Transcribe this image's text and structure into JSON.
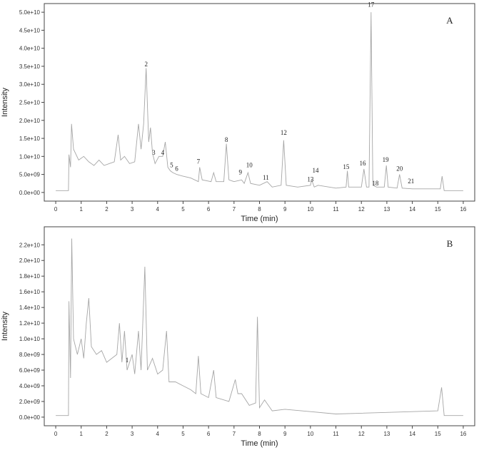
{
  "chart_data": [
    {
      "type": "line",
      "panel_label": "A",
      "x_label": "Time (min)",
      "y_label": "Intensity",
      "color": "#a6a6a6",
      "xlim": [
        -0.45,
        16.45
      ],
      "ylim": [
        -2400000000.0,
        52400000000.0
      ],
      "xticks": [
        0,
        1,
        2,
        3,
        4,
        5,
        6,
        7,
        8,
        9,
        10,
        11,
        12,
        13,
        14,
        15,
        16
      ],
      "yticks": [
        {
          "value": 0,
          "label": "0.0e+00"
        },
        {
          "value": 5000000000.0,
          "label": "5.0e+09"
        },
        {
          "value": 10000000000.0,
          "label": "1.0e+10"
        },
        {
          "value": 15000000000.0,
          "label": "1.5e+10"
        },
        {
          "value": 20000000000.0,
          "label": "2.0e+10"
        },
        {
          "value": 25000000000.0,
          "label": "2.5e+10"
        },
        {
          "value": 30000000000.0,
          "label": "3.0e+10"
        },
        {
          "value": 35000000000.0,
          "label": "3.5e+10"
        },
        {
          "value": 40000000000.0,
          "label": "4.0e+10"
        },
        {
          "value": 45000000000.0,
          "label": "4.5e+10"
        },
        {
          "value": 50000000000.0,
          "label": "5.0e+10"
        }
      ],
      "x": [
        0,
        0.5,
        0.52,
        0.58,
        0.62,
        0.7,
        0.9,
        1.1,
        1.3,
        1.5,
        1.7,
        1.9,
        2.1,
        2.3,
        2.45,
        2.55,
        2.7,
        2.9,
        3.1,
        3.25,
        3.35,
        3.45,
        3.55,
        3.65,
        3.72,
        3.8,
        3.9,
        4.05,
        4.2,
        4.3,
        4.4,
        4.5,
        4.6,
        4.75,
        5.0,
        5.3,
        5.6,
        5.65,
        5.75,
        6.1,
        6.2,
        6.3,
        6.6,
        6.7,
        6.8,
        7.0,
        7.3,
        7.4,
        7.55,
        7.65,
        8.0,
        8.3,
        8.5,
        8.85,
        8.95,
        9.05,
        9.5,
        10.0,
        10.05,
        10.15,
        10.3,
        11.0,
        11.4,
        11.45,
        11.5,
        12.0,
        12.1,
        12.2,
        12.3,
        12.38,
        12.45,
        12.6,
        12.9,
        12.98,
        13.05,
        13.4,
        13.5,
        13.6,
        14.0,
        15.1,
        15.17,
        15.25,
        16.0
      ],
      "values": [
        500000000.0,
        500000000.0,
        10500000000.0,
        7000000000.0,
        19000000000.0,
        12000000000.0,
        9000000000.0,
        10000000000.0,
        8500000000.0,
        7500000000.0,
        9000000000.0,
        7500000000.0,
        8000000000.0,
        8500000000.0,
        16000000000.0,
        9000000000.0,
        10000000000.0,
        8000000000.0,
        8500000000.0,
        19000000000.0,
        12000000000.0,
        19000000000.0,
        34500000000.0,
        14000000000.0,
        18000000000.0,
        11000000000.0,
        8000000000.0,
        10000000000.0,
        10000000000.0,
        14000000000.0,
        7000000000.0,
        6000000000.0,
        5500000000.0,
        5000000000.0,
        4500000000.0,
        4000000000.0,
        3000000000.0,
        7000000000.0,
        3500000000.0,
        3000000000.0,
        5500000000.0,
        3000000000.0,
        3000000000.0,
        13500000000.0,
        3500000000.0,
        3000000000.0,
        3500000000.0,
        2500000000.0,
        5500000000.0,
        2500000000.0,
        2000000000.0,
        3000000000.0,
        1500000000.0,
        2000000000.0,
        14500000000.0,
        2000000000.0,
        1500000000.0,
        2000000000.0,
        3500000000.0,
        1500000000.0,
        2000000000.0,
        1200000000.0,
        1500000000.0,
        6000000000.0,
        1500000000.0,
        1500000000.0,
        6500000000.0,
        1500000000.0,
        1500000000.0,
        50000000000.0,
        2000000000.0,
        1500000000.0,
        1500000000.0,
        7500000000.0,
        1500000000.0,
        1200000000.0,
        5000000000.0,
        1200000000.0,
        1000000000.0,
        1000000000.0,
        4500000000.0,
        500000000.0,
        500000000.0
      ],
      "annotations": [
        {
          "text": "2",
          "x": 3.55,
          "y": 35000000000.0
        },
        {
          "text": "3",
          "x": 3.85,
          "y": 10500000000.0
        },
        {
          "text": "4",
          "x": 4.2,
          "y": 10500000000.0
        },
        {
          "text": "5",
          "x": 4.55,
          "y": 7000000000.0
        },
        {
          "text": "6",
          "x": 4.75,
          "y": 6000000000.0
        },
        {
          "text": "7",
          "x": 5.6,
          "y": 8000000000.0
        },
        {
          "text": "8",
          "x": 6.7,
          "y": 14000000000.0
        },
        {
          "text": "9",
          "x": 7.25,
          "y": 5000000000.0
        },
        {
          "text": "10",
          "x": 7.6,
          "y": 7000000000.0
        },
        {
          "text": "11",
          "x": 8.25,
          "y": 3500000000.0
        },
        {
          "text": "12",
          "x": 8.95,
          "y": 16000000000.0
        },
        {
          "text": "13",
          "x": 10.0,
          "y": 3000000000.0
        },
        {
          "text": "14",
          "x": 10.2,
          "y": 5500000000.0
        },
        {
          "text": "15",
          "x": 11.4,
          "y": 6500000000.0
        },
        {
          "text": "16",
          "x": 12.05,
          "y": 7500000000.0
        },
        {
          "text": "17",
          "x": 12.38,
          "y": 51500000000.0
        },
        {
          "text": "18",
          "x": 12.55,
          "y": 2000000000.0
        },
        {
          "text": "19",
          "x": 12.95,
          "y": 8500000000.0
        },
        {
          "text": "20",
          "x": 13.5,
          "y": 6000000000.0
        },
        {
          "text": "21",
          "x": 13.95,
          "y": 2500000000.0
        }
      ]
    },
    {
      "type": "line",
      "panel_label": "B",
      "x_label": "Time (min)",
      "y_label": "Intensity",
      "color": "#a6a6a6",
      "xlim": [
        -0.45,
        16.45
      ],
      "ylim": [
        -1100000000.0,
        24300000000.0
      ],
      "xticks": [
        0,
        1,
        2,
        3,
        4,
        5,
        6,
        7,
        8,
        9,
        10,
        11,
        12,
        13,
        14,
        15,
        16
      ],
      "yticks": [
        {
          "value": 0,
          "label": "0.0e+00"
        },
        {
          "value": 2000000000.0,
          "label": "2.0e+09"
        },
        {
          "value": 4000000000.0,
          "label": "4.0e+09"
        },
        {
          "value": 6000000000.0,
          "label": "6.0e+09"
        },
        {
          "value": 8000000000.0,
          "label": "8.0e+09"
        },
        {
          "value": 10000000000.0,
          "label": "1.0e+10"
        },
        {
          "value": 12000000000.0,
          "label": "1.2e+10"
        },
        {
          "value": 14000000000.0,
          "label": "1.4e+10"
        },
        {
          "value": 16000000000.0,
          "label": "1.6e+10"
        },
        {
          "value": 18000000000.0,
          "label": "1.8e+10"
        },
        {
          "value": 20000000000.0,
          "label": "2.0e+10"
        },
        {
          "value": 22000000000.0,
          "label": "2.2e+10"
        }
      ],
      "x": [
        0,
        0.5,
        0.52,
        0.58,
        0.63,
        0.7,
        0.85,
        1.0,
        1.1,
        1.2,
        1.3,
        1.4,
        1.6,
        1.8,
        2.0,
        2.2,
        2.4,
        2.5,
        2.6,
        2.7,
        2.8,
        3.0,
        3.1,
        3.25,
        3.35,
        3.5,
        3.6,
        3.8,
        4.0,
        4.2,
        4.35,
        4.45,
        4.7,
        5.0,
        5.3,
        5.5,
        5.6,
        5.7,
        6.0,
        6.2,
        6.3,
        6.8,
        7.05,
        7.15,
        7.3,
        7.6,
        7.85,
        7.92,
        8.0,
        8.2,
        8.5,
        9,
        10,
        11,
        12,
        13,
        14,
        15,
        15.15,
        15.25,
        16
      ],
      "values": [
        200000000.0,
        200000000.0,
        14800000000.0,
        5000000000.0,
        22800000000.0,
        10000000000.0,
        8000000000.0,
        10000000000.0,
        7500000000.0,
        12000000000.0,
        15200000000.0,
        9000000000.0,
        8000000000.0,
        8500000000.0,
        7000000000.0,
        7500000000.0,
        8000000000.0,
        12000000000.0,
        7000000000.0,
        11000000000.0,
        6000000000.0,
        8000000000.0,
        5500000000.0,
        11000000000.0,
        6000000000.0,
        19200000000.0,
        6000000000.0,
        7500000000.0,
        5500000000.0,
        6000000000.0,
        11000000000.0,
        4500000000.0,
        4500000000.0,
        4000000000.0,
        3500000000.0,
        3000000000.0,
        7800000000.0,
        3000000000.0,
        2500000000.0,
        6000000000.0,
        2500000000.0,
        2000000000.0,
        4800000000.0,
        3000000000.0,
        3000000000.0,
        1500000000.0,
        1800000000.0,
        12800000000.0,
        1200000000.0,
        2200000000.0,
        800000000.0,
        1000000000.0,
        700000000.0,
        400000000.0,
        500000000.0,
        600000000.0,
        700000000.0,
        800000000.0,
        3800000000.0,
        200000000.0,
        200000000.0
      ],
      "annotations": [
        {
          "text": "1",
          "x": 2.8,
          "y": 7000000000.0
        }
      ]
    }
  ]
}
